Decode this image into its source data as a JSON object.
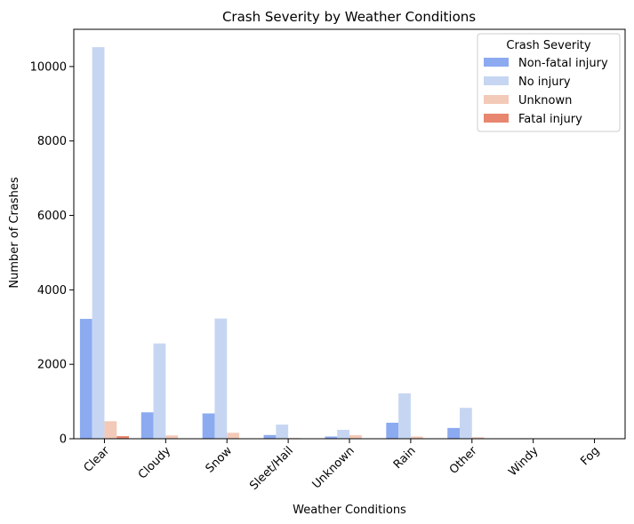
{
  "chart_data": {
    "type": "bar",
    "title": "Crash Severity by Weather Conditions",
    "xlabel": "Weather Conditions",
    "ylabel": "Number of Crashes",
    "categories": [
      "Clear",
      "Cloudy",
      "Snow",
      "Sleet/Hail",
      "Unknown",
      "Rain",
      "Other",
      "Windy",
      "Fog"
    ],
    "ylim": [
      0,
      11000
    ],
    "yticks": [
      0,
      2000,
      4000,
      6000,
      8000,
      10000
    ],
    "grid": false,
    "legend": {
      "title": "Crash Severity",
      "placement": "top-right"
    },
    "series": [
      {
        "name": "Non-fatal injury",
        "color": "#8caaf0",
        "values": [
          3220,
          710,
          680,
          100,
          60,
          430,
          290,
          10,
          5
        ]
      },
      {
        "name": "No injury",
        "color": "#c6d6f2",
        "values": [
          10520,
          2560,
          3230,
          380,
          240,
          1220,
          830,
          15,
          10
        ]
      },
      {
        "name": "Unknown",
        "color": "#f3c9b8",
        "values": [
          470,
          90,
          160,
          20,
          95,
          60,
          40,
          3,
          2
        ]
      },
      {
        "name": "Fatal injury",
        "color": "#e8866f",
        "values": [
          70,
          10,
          10,
          2,
          5,
          8,
          5,
          1,
          1
        ]
      }
    ]
  }
}
